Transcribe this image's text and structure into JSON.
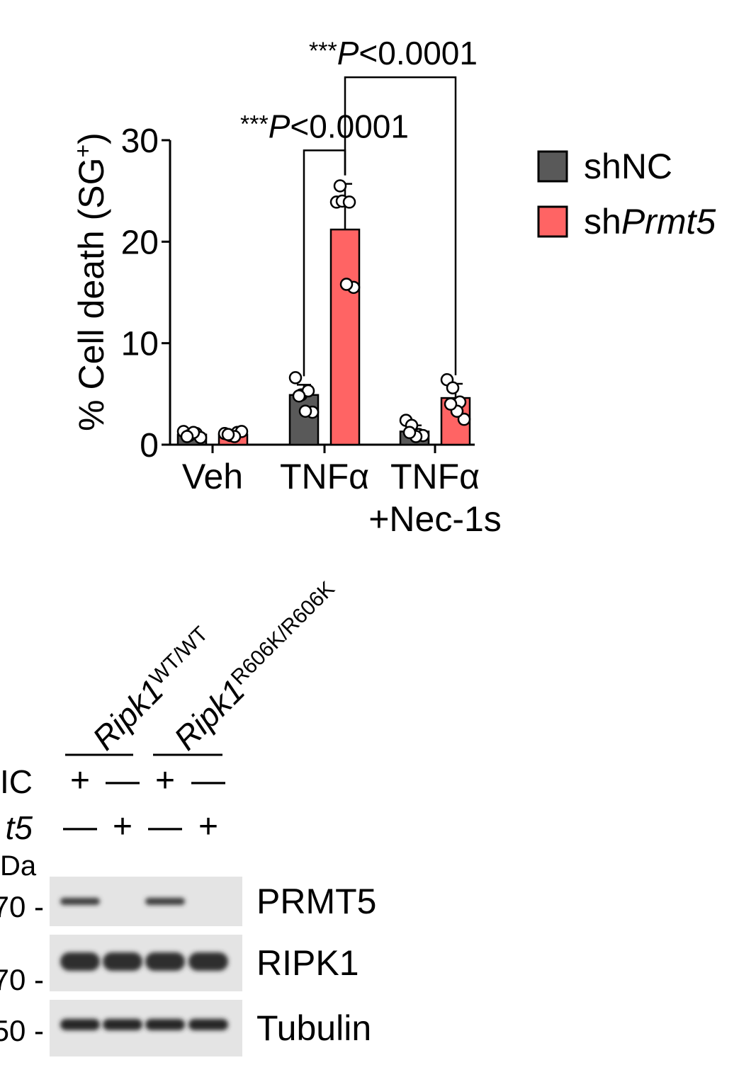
{
  "chart_data": {
    "type": "bar",
    "ylabel": "% Cell death (SG",
    "ylabel_sup": "+",
    "ylabel_end": ")",
    "ylim": [
      0,
      30
    ],
    "yticks": [
      "0",
      "10",
      "20",
      "30"
    ],
    "categories": [
      {
        "line1": "Veh",
        "line2": ""
      },
      {
        "line1": "TNFα",
        "line2": ""
      },
      {
        "line1": "TNFα",
        "line2": "+Nec-1s"
      }
    ],
    "series": [
      {
        "name_prefix": "sh",
        "name_italic": "NC",
        "italic": false,
        "color": "#595959",
        "values": [
          1.0,
          4.9,
          1.3
        ],
        "errors": [
          0.3,
          1.0,
          0.6
        ],
        "points": [
          [
            1.3,
            0.9,
            1.1,
            0.7,
            1.2,
            0.8
          ],
          [
            6.6,
            4.9,
            5.3,
            3.2,
            3.3,
            4.8
          ],
          [
            2.4,
            1.9,
            1.0,
            0.9,
            0.8,
            1.2
          ]
        ]
      },
      {
        "name_prefix": "sh",
        "name_italic": "Prmt5",
        "italic": true,
        "color": "#ff6464",
        "values": [
          1.0,
          21.2,
          4.6
        ],
        "errors": [
          0.3,
          4.5,
          1.4
        ],
        "points": [
          [
            1.1,
            0.9,
            1.2,
            1.3,
            0.8,
            1.0
          ],
          [
            23.9,
            24.0,
            23.9,
            15.5,
            15.8,
            25.5
          ],
          [
            6.4,
            5.6,
            4.2,
            2.5,
            3.3,
            4.0
          ]
        ]
      }
    ],
    "annotations": [
      {
        "stars": "***",
        "p": "P",
        "text": "<0.0001",
        "from": [
          1,
          0
        ],
        "to": [
          1,
          1
        ],
        "y": 29.0
      },
      {
        "stars": "***",
        "p": "P",
        "text": "<0.0001",
        "from": [
          1,
          1
        ],
        "to": [
          2,
          1
        ],
        "y": 36.2
      }
    ],
    "legend_position": "right"
  },
  "blot": {
    "genotypes": [
      {
        "base": "Ripk1",
        "sup": "WT/WT"
      },
      {
        "base": "Ripk1",
        "sup": "R606K/R606K"
      }
    ],
    "rows": [
      {
        "label": "IC",
        "italic": false,
        "marks": [
          "+",
          "—",
          "+",
          "—"
        ]
      },
      {
        "label": "t5",
        "italic": true,
        "marks": [
          "—",
          "+",
          "—",
          "+"
        ]
      }
    ],
    "kda_label": "Da",
    "bands": [
      {
        "name": "PRMT5",
        "marker": "70 -",
        "intensity": [
          0.85,
          0.0,
          0.85,
          0.0
        ]
      },
      {
        "name": "RIPK1",
        "marker": "70 -",
        "intensity": [
          0.95,
          0.95,
          0.95,
          0.95
        ]
      },
      {
        "name": "Tubulin",
        "marker": "50 -",
        "intensity": [
          1.0,
          1.0,
          1.0,
          1.0
        ]
      }
    ]
  }
}
